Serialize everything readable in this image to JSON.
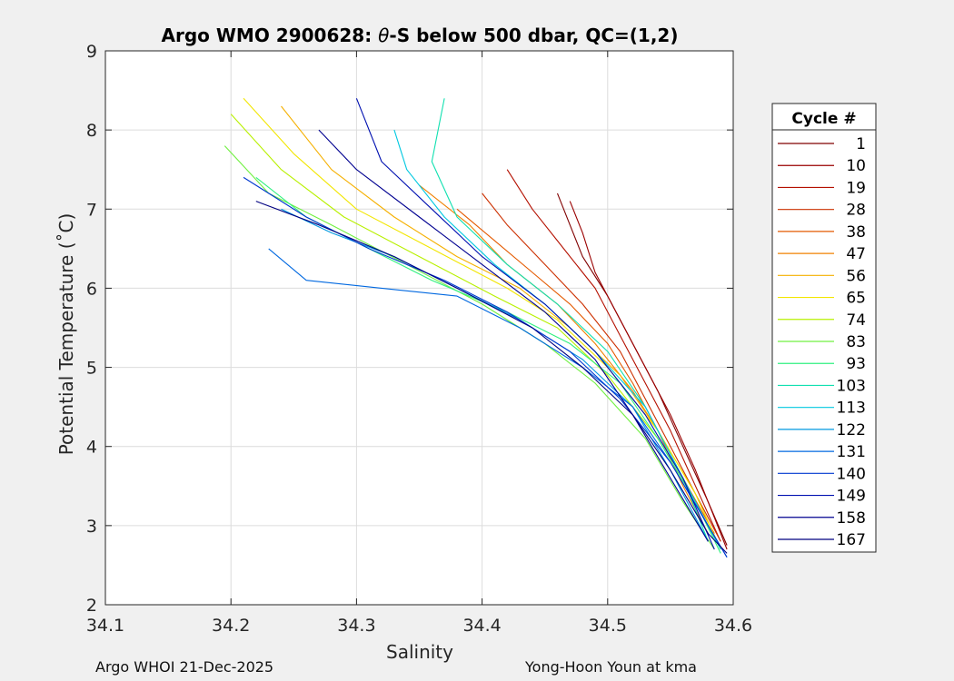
{
  "chart_data": {
    "type": "line",
    "title_prefix": "Argo WMO 2900628: ",
    "title_theta": "θ",
    "title_suffix": "-S below 500 dbar,  QC=(1,2)",
    "xlabel": "Salinity",
    "ylabel": "Potential Temperature (˚C)",
    "xlim": [
      34.1,
      34.6
    ],
    "ylim": [
      2,
      9
    ],
    "xticks": [
      34.1,
      34.2,
      34.3,
      34.4,
      34.5,
      34.6
    ],
    "xtick_labels": [
      "34.1",
      "34.2",
      "34.3",
      "34.4",
      "34.5",
      "34.6"
    ],
    "yticks": [
      2,
      3,
      4,
      5,
      6,
      7,
      8,
      9
    ],
    "ytick_labels": [
      "2",
      "3",
      "4",
      "5",
      "6",
      "7",
      "8",
      "9"
    ],
    "grid": true,
    "legend": {
      "title": "Cycle #",
      "placement": "outside-right",
      "entries": [
        {
          "label": "1",
          "color": "#800000"
        },
        {
          "label": "10",
          "color": "#9a0000"
        },
        {
          "label": "19",
          "color": "#b41000"
        },
        {
          "label": "28",
          "color": "#cc3000"
        },
        {
          "label": "38",
          "color": "#e45a00"
        },
        {
          "label": "47",
          "color": "#f08000"
        },
        {
          "label": "56",
          "color": "#f5b000"
        },
        {
          "label": "65",
          "color": "#f2e600"
        },
        {
          "label": "74",
          "color": "#b8f000"
        },
        {
          "label": "83",
          "color": "#70f040"
        },
        {
          "label": "93",
          "color": "#30f080"
        },
        {
          "label": "103",
          "color": "#10e0b0"
        },
        {
          "label": "113",
          "color": "#00c8e0"
        },
        {
          "label": "122",
          "color": "#0098e0"
        },
        {
          "label": "131",
          "color": "#0068e0"
        },
        {
          "label": "140",
          "color": "#0038d0"
        },
        {
          "label": "149",
          "color": "#0010b0"
        },
        {
          "label": "158",
          "color": "#000090"
        },
        {
          "label": "167",
          "color": "#000080"
        }
      ]
    },
    "series": [
      {
        "name": "1",
        "color": "#800000",
        "x": [
          34.46,
          34.47,
          34.48,
          34.5,
          34.52,
          34.54,
          34.56,
          34.58,
          34.595
        ],
        "y": [
          7.2,
          6.8,
          6.4,
          5.9,
          5.3,
          4.7,
          4.0,
          3.3,
          2.75
        ]
      },
      {
        "name": "10",
        "color": "#9a0000",
        "x": [
          34.47,
          34.48,
          34.49,
          34.51,
          34.53,
          34.55,
          34.57,
          34.585,
          34.595
        ],
        "y": [
          7.1,
          6.7,
          6.2,
          5.6,
          5.0,
          4.4,
          3.7,
          3.1,
          2.7
        ]
      },
      {
        "name": "19",
        "color": "#b41000",
        "x": [
          34.42,
          34.44,
          34.46,
          34.49,
          34.51,
          34.53,
          34.55,
          34.57,
          34.59
        ],
        "y": [
          7.5,
          7.0,
          6.6,
          6.0,
          5.4,
          4.8,
          4.2,
          3.5,
          2.8
        ]
      },
      {
        "name": "28",
        "color": "#cc3000",
        "x": [
          34.4,
          34.42,
          34.45,
          34.48,
          34.51,
          34.53,
          34.55,
          34.57,
          34.59
        ],
        "y": [
          7.2,
          6.8,
          6.3,
          5.8,
          5.2,
          4.6,
          4.0,
          3.4,
          2.8
        ]
      },
      {
        "name": "38",
        "color": "#e45a00",
        "x": [
          34.38,
          34.41,
          34.44,
          34.47,
          34.5,
          34.52,
          34.54,
          34.56,
          34.585
        ],
        "y": [
          7.0,
          6.6,
          6.2,
          5.8,
          5.3,
          4.8,
          4.2,
          3.6,
          2.9
        ]
      },
      {
        "name": "47",
        "color": "#f08000",
        "x": [
          34.35,
          34.39,
          34.42,
          34.46,
          34.49,
          34.52,
          34.54,
          34.56,
          34.58
        ],
        "y": [
          7.3,
          6.8,
          6.3,
          5.8,
          5.3,
          4.7,
          4.2,
          3.5,
          2.9
        ]
      },
      {
        "name": "56",
        "color": "#f5b000",
        "x": [
          34.24,
          34.28,
          34.33,
          34.38,
          34.43,
          34.47,
          34.51,
          34.54,
          34.57,
          34.59
        ],
        "y": [
          8.3,
          7.5,
          6.9,
          6.4,
          6.0,
          5.5,
          4.9,
          4.2,
          3.4,
          2.7
        ]
      },
      {
        "name": "65",
        "color": "#f2e600",
        "x": [
          34.21,
          34.25,
          34.3,
          34.36,
          34.42,
          34.46,
          34.5,
          34.54,
          34.57,
          34.59
        ],
        "y": [
          8.4,
          7.7,
          7.0,
          6.5,
          6.0,
          5.6,
          5.0,
          4.2,
          3.4,
          2.7
        ]
      },
      {
        "name": "74",
        "color": "#b8f000",
        "x": [
          34.2,
          34.24,
          34.29,
          34.35,
          34.41,
          34.46,
          34.5,
          34.54,
          34.57,
          34.59
        ],
        "y": [
          8.2,
          7.5,
          6.9,
          6.4,
          5.9,
          5.5,
          4.9,
          4.1,
          3.3,
          2.7
        ]
      },
      {
        "name": "83",
        "color": "#70f040",
        "x": [
          34.195,
          34.23,
          34.28,
          34.34,
          34.4,
          34.45,
          34.49,
          34.53,
          34.56,
          34.585
        ],
        "y": [
          7.8,
          7.2,
          6.8,
          6.3,
          5.8,
          5.3,
          4.8,
          4.1,
          3.3,
          2.7
        ]
      },
      {
        "name": "93",
        "color": "#30f080",
        "x": [
          34.22,
          34.26,
          34.31,
          34.36,
          34.42,
          34.47,
          34.51,
          34.54,
          34.57,
          34.59
        ],
        "y": [
          7.4,
          6.9,
          6.5,
          6.1,
          5.7,
          5.3,
          4.8,
          4.1,
          3.3,
          2.65
        ]
      },
      {
        "name": "103",
        "color": "#10e0b0",
        "x": [
          34.37,
          34.36,
          34.38,
          34.42,
          34.46,
          34.5,
          34.53,
          34.56,
          34.58
        ],
        "y": [
          8.4,
          7.6,
          6.9,
          6.3,
          5.8,
          5.2,
          4.5,
          3.6,
          2.8
        ]
      },
      {
        "name": "113",
        "color": "#00c8e0",
        "x": [
          34.33,
          34.34,
          34.37,
          34.41,
          34.45,
          34.49,
          34.53,
          34.56,
          34.59
        ],
        "y": [
          8.0,
          7.5,
          6.9,
          6.3,
          5.8,
          5.2,
          4.5,
          3.6,
          2.7
        ]
      },
      {
        "name": "122",
        "color": "#0098e0",
        "x": [
          34.24,
          34.28,
          34.33,
          34.38,
          34.43,
          34.48,
          34.52,
          34.55,
          34.58
        ],
        "y": [
          7.0,
          6.7,
          6.4,
          6.0,
          5.6,
          5.1,
          4.5,
          3.7,
          2.8
        ]
      },
      {
        "name": "131",
        "color": "#0068e0",
        "x": [
          34.23,
          34.26,
          34.32,
          34.38,
          34.43,
          34.48,
          34.52,
          34.55,
          34.58,
          34.595
        ],
        "y": [
          6.5,
          6.1,
          6.0,
          5.9,
          5.5,
          5.0,
          4.5,
          3.8,
          3.0,
          2.6
        ]
      },
      {
        "name": "140",
        "color": "#0038d0",
        "x": [
          34.21,
          34.26,
          34.31,
          34.37,
          34.42,
          34.47,
          34.51,
          34.55,
          34.58,
          34.595
        ],
        "y": [
          7.4,
          6.9,
          6.5,
          6.1,
          5.7,
          5.2,
          4.6,
          3.8,
          3.0,
          2.6
        ]
      },
      {
        "name": "149",
        "color": "#0010b0",
        "x": [
          34.3,
          34.32,
          34.36,
          34.4,
          34.45,
          34.49,
          34.53,
          34.56,
          34.585
        ],
        "y": [
          8.4,
          7.6,
          7.0,
          6.4,
          5.8,
          5.2,
          4.4,
          3.6,
          2.7
        ]
      },
      {
        "name": "158",
        "color": "#000090",
        "x": [
          34.27,
          34.3,
          34.35,
          34.4,
          34.45,
          34.49,
          34.52,
          34.55,
          34.58
        ],
        "y": [
          8.0,
          7.5,
          6.9,
          6.3,
          5.7,
          5.1,
          4.4,
          3.6,
          2.8
        ]
      },
      {
        "name": "167",
        "color": "#000080",
        "x": [
          34.22,
          34.27,
          34.33,
          34.38,
          34.44,
          34.48,
          34.52,
          34.55,
          34.58,
          34.595
        ],
        "y": [
          7.1,
          6.8,
          6.4,
          6.0,
          5.5,
          5.0,
          4.4,
          3.7,
          2.9,
          2.65
        ]
      }
    ]
  },
  "footer": {
    "left": "Argo WHOI 21-Dec-2025",
    "right": "Yong-Hoon Youn at kma"
  }
}
